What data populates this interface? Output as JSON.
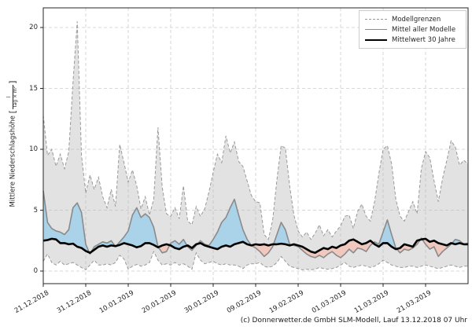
{
  "figure": {
    "ylabel_text": "Mittlere Niederschlagshöhe",
    "ylabel_bracket_open": "[",
    "ylabel_bracket_close": "]",
    "ylabel_unit_numerator": "l",
    "ylabel_unit_denominator": "Tag × m²",
    "caption": "(c) Donnerwetter.de GmbH SLM-Modell, Lauf 13.12.2018 07 Uhr"
  },
  "legend": {
    "entries": [
      {
        "label": "Modellgrenzen",
        "style": "dashed-gray"
      },
      {
        "label": "Mittel aller Modelle",
        "style": "solid-gray"
      },
      {
        "label": "Mittelwert 30 Jahre",
        "style": "solid-black-thick"
      }
    ]
  },
  "colors": {
    "band_fill": "#e4e4e4",
    "band_border": "#999999",
    "model_mean_line": "#8a8a8a",
    "climate_mean_line": "#000000",
    "above_normal_fill": "#aad3ea",
    "below_normal_fill": "#f1c8be",
    "grid": "#cdcdcd",
    "spine": "#262626"
  },
  "chart_data": {
    "type": "area",
    "title": "",
    "xlabel": "",
    "ylabel": "Mittlere Niederschlagshöhe [l/(Tag × m²)]",
    "x_start_date": "21.12.2018",
    "x_resolution": "daily",
    "x_tick_labels": [
      "21.12.2018",
      "31.12.2018",
      "10.01.2019",
      "20.01.2019",
      "30.01.2019",
      "09.02.2019",
      "19.02.2019",
      "01.03.2019",
      "11.03.2019",
      "21.03.2019"
    ],
    "x_tick_day_indices": [
      0,
      10,
      20,
      30,
      40,
      50,
      60,
      70,
      80,
      90
    ],
    "y_ticks": [
      0,
      5,
      10,
      15,
      20
    ],
    "ylim": [
      -1.05,
      21.65
    ],
    "xlim_days": [
      0,
      100
    ],
    "grid": true,
    "legend_position": "upper right",
    "series": [
      {
        "name": "Modellgrenzen (Obergrenze)",
        "values": [
          12.8,
          9.5,
          10.0,
          8.6,
          9.6,
          8.4,
          9.8,
          15.5,
          20.5,
          9.5,
          6.4,
          7.9,
          6.7,
          7.7,
          6.1,
          5.2,
          6.7,
          5.3,
          10.4,
          8.9,
          7.3,
          8.3,
          7.0,
          5.1,
          6.1,
          4.6,
          5.9,
          11.8,
          6.9,
          4.7,
          4.5,
          5.2,
          4.3,
          7.0,
          4.1,
          3.8,
          5.3,
          4.5,
          5.1,
          6.5,
          8.1,
          9.6,
          8.9,
          11.1,
          9.7,
          10.6,
          9.0,
          8.6,
          7.4,
          6.2,
          5.7,
          5.6,
          3.0,
          2.6,
          4.2,
          7.5,
          10.3,
          10.1,
          7.0,
          4.6,
          3.3,
          2.8,
          3.2,
          2.6,
          3.1,
          3.8,
          2.9,
          3.4,
          2.8,
          3.3,
          3.7,
          4.5,
          4.6,
          3.5,
          4.9,
          5.5,
          4.5,
          4.1,
          5.7,
          8.0,
          10.0,
          10.3,
          8.8,
          5.9,
          4.5,
          4.1,
          4.9,
          5.7,
          4.7,
          8.4,
          9.8,
          9.3,
          7.4,
          5.7,
          7.6,
          9.1,
          10.7,
          10.2,
          8.7,
          9.1,
          8.8
        ]
      },
      {
        "name": "Modellgrenzen (Untergrenze)",
        "values": [
          0.8,
          1.4,
          0.7,
          0.5,
          0.8,
          0.5,
          0.6,
          0.7,
          0.5,
          0.3,
          0.1,
          0.5,
          0.9,
          0.5,
          0.5,
          0.6,
          0.5,
          0.7,
          1.3,
          1.0,
          0.15,
          0.4,
          0.55,
          0.4,
          0.5,
          0.7,
          1.6,
          0.9,
          0.5,
          0.6,
          0.5,
          0.7,
          0.5,
          0.6,
          0.4,
          0.15,
          1.5,
          0.9,
          0.6,
          0.7,
          0.8,
          0.6,
          0.5,
          0.6,
          0.5,
          0.5,
          0.4,
          0.2,
          0.5,
          0.6,
          0.6,
          0.7,
          0.4,
          0.3,
          0.4,
          0.7,
          1.2,
          0.8,
          0.4,
          0.3,
          0.2,
          0.1,
          0.15,
          0.1,
          0.15,
          0.3,
          0.2,
          0.15,
          0.2,
          0.3,
          0.5,
          0.7,
          0.4,
          0.3,
          0.4,
          0.5,
          0.4,
          0.3,
          0.4,
          0.6,
          0.9,
          0.7,
          0.5,
          0.4,
          0.3,
          0.3,
          0.4,
          0.4,
          0.3,
          0.4,
          0.5,
          0.4,
          0.3,
          0.2,
          0.3,
          0.4,
          0.5,
          0.4,
          0.3,
          0.4,
          0.4
        ]
      },
      {
        "name": "Mittel aller Modelle",
        "values": [
          6.6,
          4.0,
          3.5,
          3.3,
          3.2,
          3.0,
          3.4,
          5.2,
          5.6,
          4.8,
          2.2,
          1.4,
          2.0,
          2.2,
          2.4,
          2.3,
          2.5,
          2.0,
          2.4,
          2.8,
          3.3,
          4.6,
          5.2,
          4.4,
          4.7,
          4.4,
          3.6,
          2.0,
          1.5,
          1.6,
          2.3,
          2.5,
          2.2,
          2.6,
          2.0,
          1.7,
          2.1,
          2.5,
          2.2,
          2.1,
          2.6,
          3.2,
          4.0,
          4.4,
          5.2,
          5.9,
          4.6,
          3.4,
          2.6,
          2.1,
          1.9,
          1.6,
          1.2,
          1.5,
          2.0,
          3.0,
          4.0,
          3.4,
          2.2,
          2.1,
          2.0,
          1.7,
          1.4,
          1.2,
          1.1,
          1.3,
          1.1,
          1.4,
          1.6,
          1.3,
          1.1,
          1.4,
          1.8,
          1.5,
          1.9,
          1.8,
          1.6,
          2.1,
          2.4,
          2.2,
          3.2,
          4.2,
          3.0,
          1.9,
          1.5,
          1.8,
          1.7,
          1.9,
          2.2,
          2.7,
          2.2,
          1.8,
          2.0,
          1.2,
          1.6,
          1.9,
          2.2,
          2.6,
          2.5,
          2.2,
          2.3
        ]
      },
      {
        "name": "Mittelwert 30 Jahre",
        "values": [
          2.5,
          2.55,
          2.65,
          2.6,
          2.3,
          2.3,
          2.2,
          2.25,
          2.0,
          1.9,
          1.65,
          1.5,
          1.75,
          2.0,
          2.1,
          2.0,
          2.1,
          2.05,
          2.15,
          2.3,
          2.2,
          2.1,
          1.95,
          2.05,
          2.3,
          2.3,
          2.15,
          1.95,
          2.1,
          2.2,
          2.1,
          1.9,
          1.8,
          2.0,
          2.1,
          1.9,
          2.2,
          2.3,
          2.1,
          2.0,
          1.9,
          1.8,
          2.0,
          2.1,
          2.0,
          2.2,
          2.3,
          2.4,
          2.2,
          2.1,
          2.2,
          2.15,
          2.2,
          2.1,
          2.2,
          2.2,
          2.25,
          2.2,
          2.1,
          2.2,
          2.1,
          2.0,
          1.8,
          1.6,
          1.5,
          1.7,
          1.9,
          1.8,
          2.0,
          1.9,
          2.1,
          2.2,
          2.5,
          2.6,
          2.4,
          2.2,
          2.3,
          2.5,
          2.2,
          2.0,
          2.3,
          2.3,
          2.0,
          1.8,
          1.9,
          2.2,
          2.1,
          2.0,
          2.5,
          2.6,
          2.65,
          2.4,
          2.5,
          2.3,
          2.2,
          2.1,
          2.3,
          2.2,
          2.3,
          2.2,
          2.2
        ]
      }
    ]
  }
}
